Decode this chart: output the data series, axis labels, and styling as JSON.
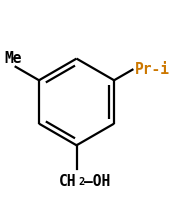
{
  "bg_color": "#ffffff",
  "ring_color": "#000000",
  "label_me_color": "#000000",
  "label_pri_color": "#cc7700",
  "label_ch2oh_color": "#000000",
  "figsize": [
    1.79,
    2.03
  ],
  "dpi": 100,
  "font_size_labels": 10.5,
  "font_size_sub": 7.5,
  "me_label": "Me",
  "pri_label": "Pr-i",
  "ch2oh_1": "CH",
  "ch2oh_2": "2",
  "ch2oh_3": "—OH"
}
